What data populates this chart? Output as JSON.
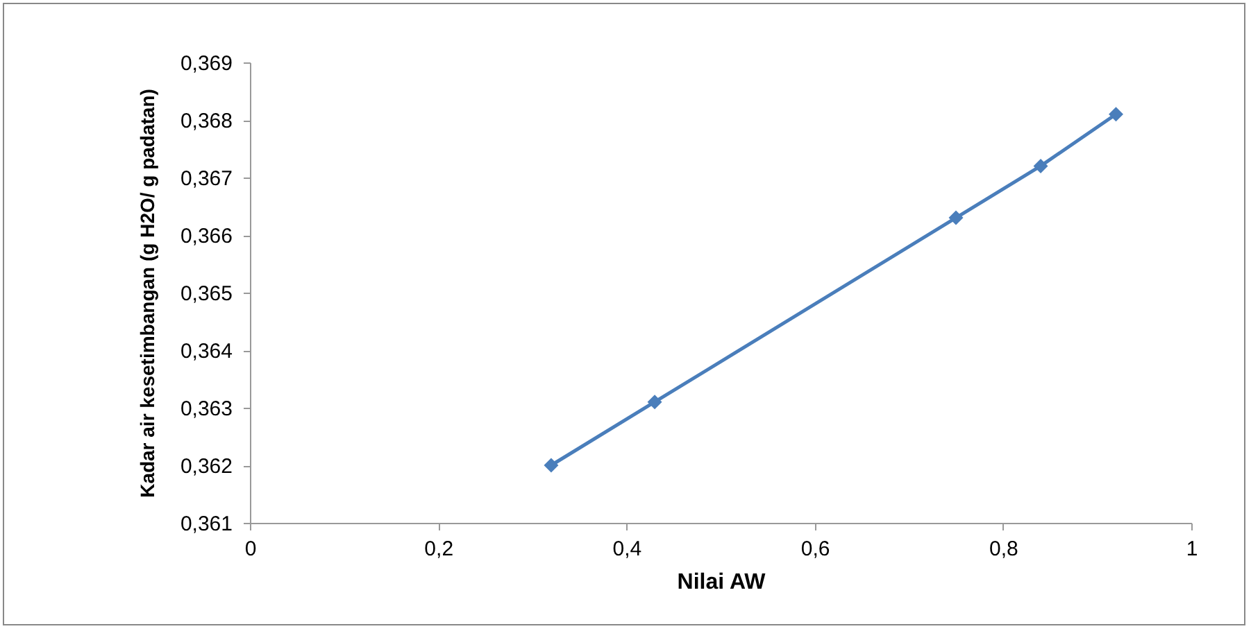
{
  "chart_data": {
    "type": "line",
    "xlabel": "Nilai AW",
    "ylabel": "Kadar air kesetimbangan (g H2O/ g padatan)",
    "x": [
      0.32,
      0.43,
      0.75,
      0.84,
      0.92
    ],
    "series": [
      {
        "color": "#4a7ebb",
        "values": [
          0.362,
          0.3631,
          0.3663,
          0.3672,
          0.3681
        ]
      }
    ],
    "xlim": [
      0,
      1
    ],
    "xticks": [
      0,
      {
        "value": 0.2,
        "label": "0,2"
      },
      {
        "value": 0.4,
        "label": "0,4"
      },
      {
        "value": 0.6,
        "label": "0,6"
      },
      {
        "value": 0.8,
        "label": "0,8"
      },
      1
    ],
    "ylim": [
      0.361,
      0.369
    ],
    "yticks": [
      {
        "value": 0.361,
        "label": "0,361"
      },
      {
        "value": 0.362,
        "label": "0,362"
      },
      {
        "value": 0.363,
        "label": "0,363"
      },
      {
        "value": 0.364,
        "label": "0,364"
      },
      {
        "value": 0.365,
        "label": "0,365"
      },
      {
        "value": 0.366,
        "label": "0,366"
      },
      {
        "value": 0.367,
        "label": "0,367"
      },
      {
        "value": 0.368,
        "label": "0,368"
      },
      {
        "value": 0.369,
        "label": "0,369"
      }
    ],
    "marker": "diamond",
    "line_style": "solid"
  }
}
